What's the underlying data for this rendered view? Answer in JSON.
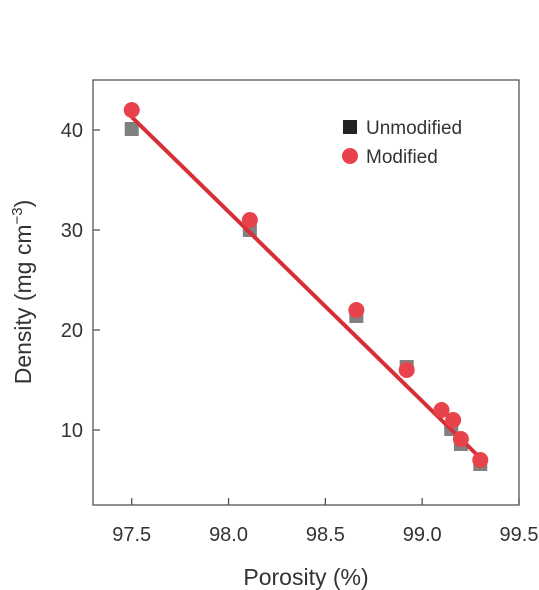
{
  "chart_data": {
    "type": "scatter",
    "xlabel": "Porosity (%)",
    "ylabel_main": "Density (mg cm",
    "ylabel_sup": "−3",
    "ylabel_end": ")",
    "xlim": [
      97.3,
      99.5
    ],
    "ylim": [
      2.5,
      45
    ],
    "x_ticks": [
      97.5,
      98.0,
      98.5,
      99.0,
      99.5
    ],
    "x_tick_labels": [
      "97.5",
      "98.0",
      "98.5",
      "99.0",
      "99.5"
    ],
    "y_ticks": [
      10,
      20,
      30,
      40
    ],
    "y_tick_labels": [
      "10",
      "20",
      "30",
      "40"
    ],
    "grid": false,
    "legend_position": "top-right",
    "series": [
      {
        "name": "Unmodified",
        "marker": "square",
        "color": "#808080",
        "legend_color": "#222222",
        "points": [
          {
            "x": 97.5,
            "y": 40.1
          },
          {
            "x": 98.11,
            "y": 30.0
          },
          {
            "x": 98.66,
            "y": 21.4
          },
          {
            "x": 98.92,
            "y": 16.3
          },
          {
            "x": 99.15,
            "y": 10.1
          },
          {
            "x": 99.2,
            "y": 8.6
          },
          {
            "x": 99.3,
            "y": 6.6
          }
        ]
      },
      {
        "name": "Modified",
        "marker": "circle",
        "color": "#e8434c",
        "legend_color": "#e8434c",
        "points": [
          {
            "x": 97.5,
            "y": 42.0
          },
          {
            "x": 98.11,
            "y": 31.0
          },
          {
            "x": 98.66,
            "y": 22.0
          },
          {
            "x": 98.92,
            "y": 16.0
          },
          {
            "x": 99.1,
            "y": 12.0
          },
          {
            "x": 99.16,
            "y": 11.0
          },
          {
            "x": 99.2,
            "y": 9.1
          },
          {
            "x": 99.3,
            "y": 7.0
          }
        ]
      }
    ],
    "fit_line": {
      "color": "#d62f38",
      "x": [
        97.5,
        99.3
      ],
      "y": [
        41.3,
        7.2
      ]
    }
  }
}
